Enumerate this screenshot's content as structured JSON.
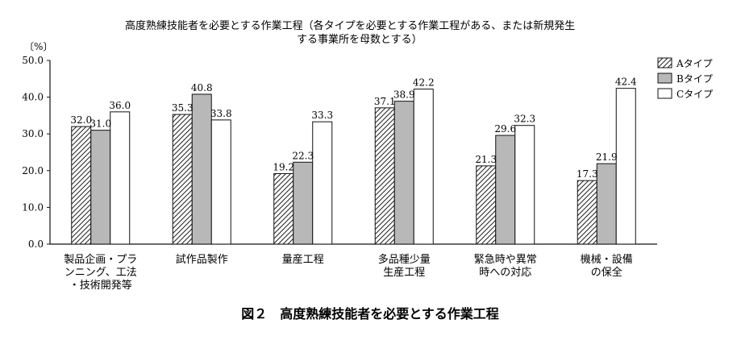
{
  "chart_data": {
    "type": "bar",
    "subtitle_lines": [
      "高度熟練技能者を必要とする作業工程（各タイプを必要とする作業工程がある、または新規発生",
      "する事業所を母数とする）"
    ],
    "ylabel": "〔%〕",
    "ylim": [
      0,
      50
    ],
    "yticks": [
      "0.0",
      "10.0",
      "20.0",
      "30.0",
      "40.0",
      "50.0"
    ],
    "categories": [
      [
        "製品企画・プラ",
        "ンニング、工法",
        "・技術開発等"
      ],
      [
        "試作品製作"
      ],
      [
        "量産工程"
      ],
      [
        "多品種少量",
        "生産工程"
      ],
      [
        "緊急時や異常",
        "時への対応"
      ],
      [
        "機械・設備",
        "の保全"
      ]
    ],
    "series": [
      {
        "name": "Aタイプ",
        "fill": "hatch",
        "values": [
          32.0,
          35.3,
          19.2,
          37.1,
          21.3,
          17.3
        ],
        "labels": [
          "32.0",
          "35.3",
          "19.2",
          "37.1",
          "21.3",
          "17.3"
        ]
      },
      {
        "name": "Bタイプ",
        "fill": "#b8b8b8",
        "values": [
          31.0,
          40.8,
          22.3,
          38.9,
          29.6,
          21.9
        ],
        "labels": [
          "31.0",
          "40.8",
          "22.3",
          "38.9",
          "29.6",
          "21.9"
        ]
      },
      {
        "name": "Cタイプ",
        "fill": "#ffffff",
        "values": [
          36.0,
          33.8,
          33.3,
          42.2,
          32.3,
          42.4
        ],
        "labels": [
          "36.0",
          "33.8",
          "33.3",
          "42.2",
          "32.3",
          "42.4"
        ]
      }
    ],
    "legend_position": "top-right",
    "grid": false,
    "caption": "図２　高度熟練技能者を必要とする作業工程"
  }
}
